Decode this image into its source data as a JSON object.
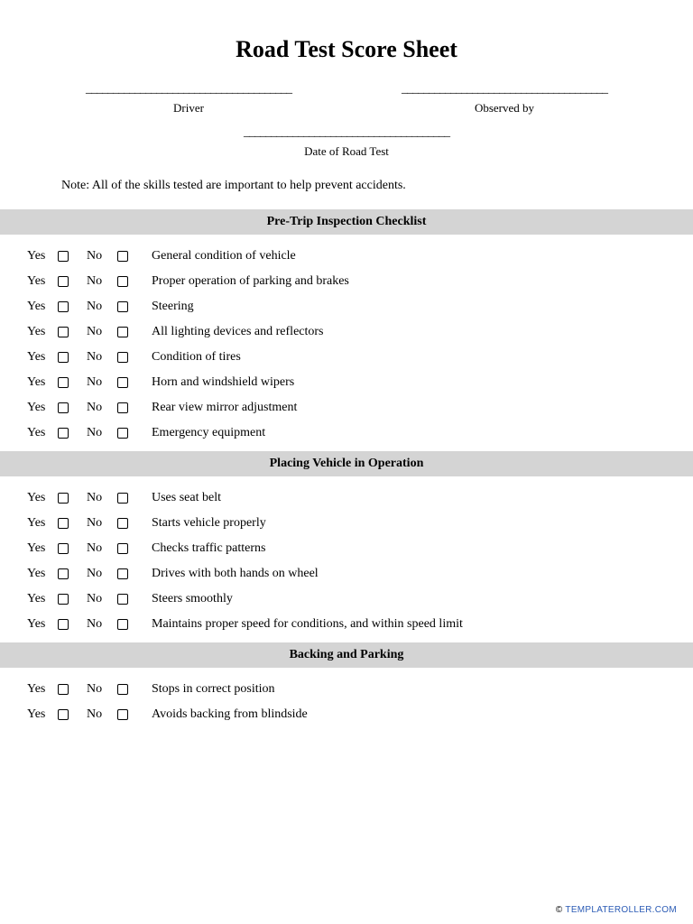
{
  "title": "Road Test Score Sheet",
  "signature_fields": {
    "driver": "Driver",
    "observed_by": "Observed by",
    "date": "Date of Road Test"
  },
  "note": "Note: All of the skills tested are important to help prevent accidents.",
  "yes_label": "Yes",
  "no_label": "No",
  "sections": [
    {
      "header": "Pre-Trip Inspection Checklist",
      "items": [
        "General condition of vehicle",
        "Proper operation of parking and brakes",
        "Steering",
        "All lighting devices and reflectors",
        "Condition of tires",
        "Horn and windshield wipers",
        "Rear view mirror adjustment",
        "Emergency equipment"
      ]
    },
    {
      "header": "Placing Vehicle in Operation",
      "items": [
        "Uses seat belt",
        "Starts vehicle properly",
        "Checks traffic patterns",
        "Drives with both hands on wheel",
        "Steers smoothly",
        "Maintains proper speed for conditions, and within speed limit"
      ]
    },
    {
      "header": "Backing and Parking",
      "items": [
        "Stops in correct position",
        "Avoids backing from blindside"
      ]
    }
  ],
  "footer": "TEMPLATEROLLER.COM",
  "colors": {
    "section_bg": "#d4d4d4",
    "text": "#000000",
    "footer_link": "#2b5bb5"
  }
}
